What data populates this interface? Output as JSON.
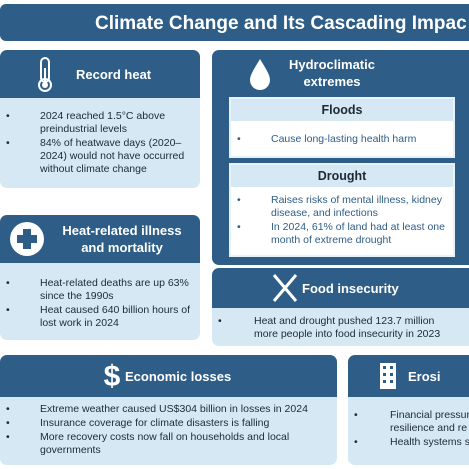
{
  "title": "Climate Change and Its Cascading Impac",
  "record_heat": {
    "heading": "Record heat",
    "bullets": [
      "2024 reached 1.5°C above preindustrial levels",
      "84% of heatwave days (2020–2024) would not have occurred without climate change"
    ]
  },
  "hydroclimatic": {
    "heading": "Hydroclimatic extremes",
    "floods": {
      "heading": "Floods",
      "bullets": [
        "Cause long-lasting health harm"
      ]
    },
    "drought": {
      "heading": "Drought",
      "bullets": [
        "Raises risks of mental illness, kidney disease, and infections",
        "In 2024, 61% of land had at least one month of extreme drought"
      ]
    }
  },
  "heat_illness": {
    "heading": "Heat-related illness and mortality",
    "bullets": [
      "Heat-related deaths are up 63% since the 1990s",
      "Heat caused 640 billion hours of lost work in 2024"
    ]
  },
  "food": {
    "heading": "Food insecurity",
    "bullets": [
      "Heat and drought pushed 123.7 million more people into food insecurity in 2023"
    ]
  },
  "economic": {
    "heading": "Economic losses",
    "bullets": [
      "Extreme weather caused US$304 billion in losses in 2024",
      "Insurance coverage for climate disasters is falling",
      "More recovery costs now fall on households and local governments"
    ]
  },
  "erosion": {
    "heading": "Erosi",
    "bullets": [
      [
        "Financial pressur",
        "resilience and re"
      ],
      [
        "Health systems s"
      ]
    ]
  }
}
